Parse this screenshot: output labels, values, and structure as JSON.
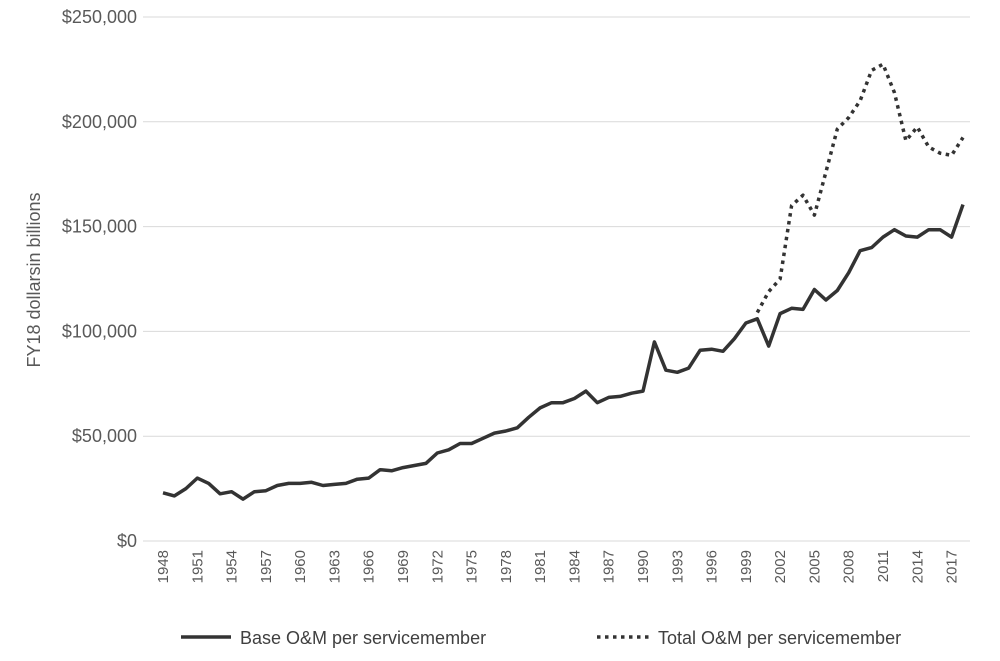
{
  "chart_data": {
    "type": "line",
    "ylabel": "FY18 dollarsin billions",
    "ylim": [
      0,
      250000
    ],
    "yticks": [
      0,
      50000,
      100000,
      150000,
      200000,
      250000
    ],
    "ytick_labels": [
      "$0",
      "$50,000",
      "$100,000",
      "$150,000",
      "$200,000",
      "$250,000"
    ],
    "xlim": [
      1948,
      2018
    ],
    "xtick_labels": [
      "1948",
      "1951",
      "1954",
      "1957",
      "1960",
      "1963",
      "1966",
      "1969",
      "1972",
      "1975",
      "1978",
      "1981",
      "1984",
      "1987",
      "1990",
      "1993",
      "1996",
      "1999",
      "2002",
      "2005",
      "2008",
      "2011",
      "2014",
      "2017"
    ],
    "grid": true,
    "legend_position": "bottom",
    "series": [
      {
        "name": "Base O&M per servicemember",
        "style": "solid",
        "color": "#333333",
        "x": [
          1948,
          1949,
          1950,
          1951,
          1952,
          1953,
          1954,
          1955,
          1956,
          1957,
          1958,
          1959,
          1960,
          1961,
          1962,
          1963,
          1964,
          1965,
          1966,
          1967,
          1968,
          1969,
          1970,
          1971,
          1972,
          1973,
          1974,
          1975,
          1976,
          1977,
          1978,
          1979,
          1980,
          1981,
          1982,
          1983,
          1984,
          1985,
          1986,
          1987,
          1988,
          1989,
          1990,
          1991,
          1992,
          1993,
          1994,
          1995,
          1996,
          1997,
          1998,
          1999,
          2000,
          2001,
          2002,
          2003,
          2004,
          2005,
          2006,
          2007,
          2008,
          2009,
          2010,
          2011,
          2012,
          2013,
          2014,
          2015,
          2016,
          2017,
          2018
        ],
        "values": [
          23000,
          21500,
          25000,
          30000,
          27500,
          22500,
          23500,
          20000,
          23500,
          24000,
          26500,
          27500,
          27500,
          28000,
          26500,
          27000,
          27500,
          29500,
          30000,
          34000,
          33500,
          35000,
          36000,
          37000,
          42000,
          43500,
          46500,
          46500,
          49000,
          51500,
          52500,
          54000,
          59000,
          63500,
          66000,
          66000,
          68000,
          71500,
          66000,
          68500,
          69000,
          70500,
          71500,
          95000,
          81500,
          80500,
          82500,
          91000,
          91500,
          90500,
          96500,
          104000,
          106000,
          93000,
          108500,
          111000,
          110500,
          120000,
          115000,
          119500,
          128000,
          138500,
          140000,
          145000,
          148500,
          145500,
          145000,
          148500,
          148500,
          145000,
          160500
        ]
      },
      {
        "name": "Total O&M per servicemember",
        "style": "dotted",
        "color": "#333333",
        "x": [
          2000,
          2001,
          2002,
          2003,
          2004,
          2005,
          2006,
          2007,
          2008,
          2009,
          2010,
          2011,
          2012,
          2013,
          2014,
          2015,
          2016,
          2017,
          2018
        ],
        "values": [
          109000,
          119000,
          125000,
          160000,
          165000,
          155500,
          176000,
          196500,
          202000,
          210000,
          224500,
          227500,
          214000,
          191000,
          197500,
          188000,
          185000,
          184000,
          192500
        ]
      }
    ]
  },
  "legend": {
    "items": [
      {
        "label": "Base O&M per servicemember",
        "style": "solid"
      },
      {
        "label": "Total O&M per servicemember",
        "style": "dotted"
      }
    ]
  }
}
